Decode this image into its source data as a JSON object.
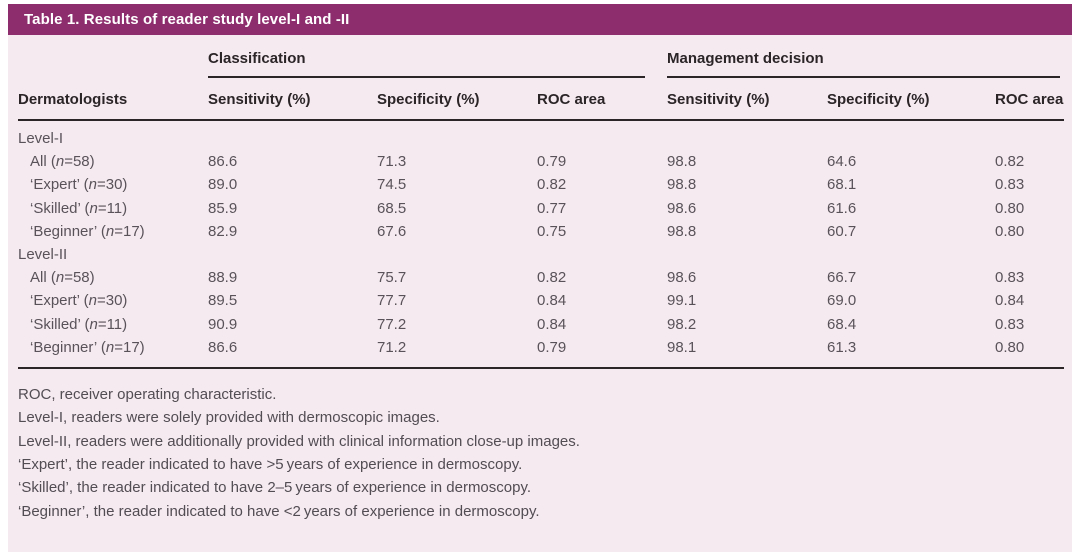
{
  "table": {
    "title": "Table 1. Results of reader study level-I and -II",
    "row_header": "Dermatologists",
    "n_symbol": "n",
    "groups": [
      {
        "label": "Classification",
        "columns": [
          "Sensitivity (%)",
          "Specificity (%)",
          "ROC area"
        ]
      },
      {
        "label": "Management decision",
        "columns": [
          "Sensitivity (%)",
          "Specificity (%)",
          "ROC area"
        ]
      }
    ],
    "sections": [
      {
        "label": "Level-I",
        "rows": [
          {
            "name": "All",
            "n": "58",
            "values": [
              "86.6",
              "71.3",
              "0.79",
              "98.8",
              "64.6",
              "0.82"
            ]
          },
          {
            "name": "‘Expert’",
            "n": "30",
            "values": [
              "89.0",
              "74.5",
              "0.82",
              "98.8",
              "68.1",
              "0.83"
            ]
          },
          {
            "name": "‘Skilled’",
            "n": "11",
            "values": [
              "85.9",
              "68.5",
              "0.77",
              "98.6",
              "61.6",
              "0.80"
            ]
          },
          {
            "name": "‘Beginner’",
            "n": "17",
            "values": [
              "82.9",
              "67.6",
              "0.75",
              "98.8",
              "60.7",
              "0.80"
            ]
          }
        ]
      },
      {
        "label": "Level-II",
        "rows": [
          {
            "name": "All",
            "n": "58",
            "values": [
              "88.9",
              "75.7",
              "0.82",
              "98.6",
              "66.7",
              "0.83"
            ]
          },
          {
            "name": "‘Expert’",
            "n": "30",
            "values": [
              "89.5",
              "77.7",
              "0.84",
              "99.1",
              "69.0",
              "0.84"
            ]
          },
          {
            "name": "‘Skilled’",
            "n": "11",
            "values": [
              "90.9",
              "77.2",
              "0.84",
              "98.2",
              "68.4",
              "0.83"
            ]
          },
          {
            "name": "‘Beginner’",
            "n": "17",
            "values": [
              "86.6",
              "71.2",
              "0.79",
              "98.1",
              "61.3",
              "0.80"
            ]
          }
        ]
      }
    ],
    "footnotes": [
      "ROC, receiver operating characteristic.",
      "Level-I, readers were solely provided with dermoscopic images.",
      "Level-II, readers were additionally provided with clinical information close-up images.",
      "‘Expert’, the reader indicated to have >5 years of experience in dermoscopy.",
      "‘Skilled’, the reader indicated to have 2–5 years of experience in dermoscopy.",
      "‘Beginner’, the reader indicated to have <2 years of experience in dermoscopy."
    ]
  },
  "colors": {
    "title_bg": "#8d2d6d",
    "panel_bg": "#f5eaf0",
    "rule": "#2b2528",
    "body_text": "#595359"
  }
}
